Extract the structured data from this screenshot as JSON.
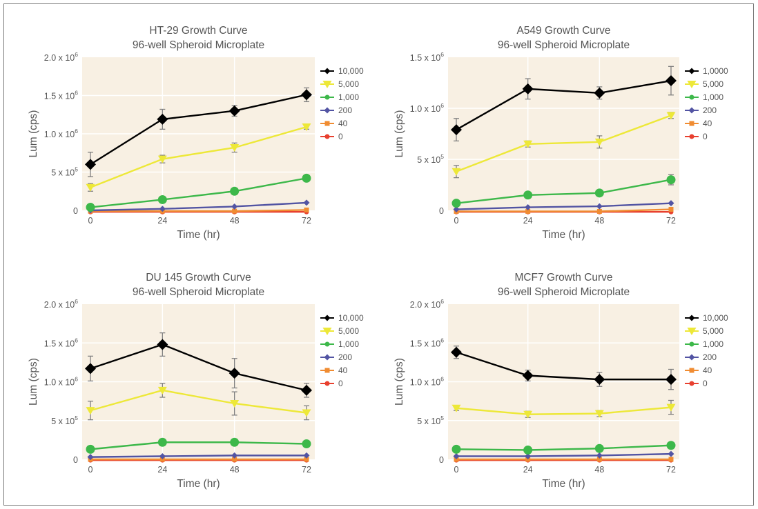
{
  "chart_data": [
    {
      "type": "line",
      "title": "HT-29 Growth Curve",
      "subtitle": "96-well Spheroid Microplate",
      "xlabel": "Time (hr)",
      "ylabel": "Lum (cps)",
      "x": [
        0,
        24,
        48,
        72
      ],
      "xticks": [
        "0",
        "24",
        "48",
        "72"
      ],
      "ylim": [
        0,
        2000000
      ],
      "yticks": [
        {
          "value": 0,
          "mant": "0",
          "exp": ""
        },
        {
          "value": 500000,
          "mant": "5 x 10",
          "exp": "5"
        },
        {
          "value": 1000000,
          "mant": "1.0 x 10",
          "exp": "6"
        },
        {
          "value": 1500000,
          "mant": "1.5 x 10",
          "exp": "6"
        },
        {
          "value": 2000000,
          "mant": "2.0 x 10",
          "exp": "6"
        }
      ],
      "legend_position": "right",
      "series": [
        {
          "name": "10,000",
          "color": "#000000",
          "marker": "diamond",
          "values": [
            600000,
            1190000,
            1300000,
            1510000
          ],
          "errors": [
            160000,
            130000,
            70000,
            90000
          ]
        },
        {
          "name": "5,000",
          "color": "#ede838",
          "marker": "triangle-down",
          "values": [
            300000,
            670000,
            820000,
            1090000
          ],
          "errors": [
            50000,
            50000,
            60000,
            30000
          ]
        },
        {
          "name": "1,000",
          "color": "#3db84a",
          "marker": "circle",
          "values": [
            40000,
            140000,
            250000,
            420000
          ],
          "errors": [
            0,
            0,
            0,
            0
          ]
        },
        {
          "name": "200",
          "color": "#5254a3",
          "marker": "diamond-small",
          "values": [
            0,
            20000,
            50000,
            100000
          ],
          "errors": [
            0,
            0,
            0,
            0
          ]
        },
        {
          "name": "40",
          "color": "#f08c32",
          "marker": "square",
          "values": [
            -10000,
            -10000,
            -10000,
            5000
          ],
          "errors": [
            0,
            0,
            0,
            0
          ]
        },
        {
          "name": "0",
          "color": "#e8402f",
          "marker": "circle-small",
          "values": [
            -20000,
            -20000,
            -20000,
            -20000
          ],
          "errors": [
            0,
            0,
            0,
            0
          ]
        }
      ]
    },
    {
      "type": "line",
      "title": "A549 Growth Curve",
      "subtitle": "96-well Spheroid Microplate",
      "xlabel": "Time (hr)",
      "ylabel": "Lum (cps)",
      "x": [
        0,
        24,
        48,
        72
      ],
      "xticks": [
        "0",
        "24",
        "48",
        "72"
      ],
      "ylim": [
        0,
        1500000
      ],
      "yticks": [
        {
          "value": 0,
          "mant": "0",
          "exp": ""
        },
        {
          "value": 500000,
          "mant": "5 x 10",
          "exp": "5"
        },
        {
          "value": 1000000,
          "mant": "1.0 x 10",
          "exp": "6"
        },
        {
          "value": 1500000,
          "mant": "1.5 x 10",
          "exp": "6"
        }
      ],
      "legend_position": "right",
      "series": [
        {
          "name": "1,0000",
          "color": "#000000",
          "marker": "diamond",
          "values": [
            790000,
            1190000,
            1150000,
            1270000
          ],
          "errors": [
            110000,
            100000,
            60000,
            140000
          ]
        },
        {
          "name": "5,000",
          "color": "#ede838",
          "marker": "triangle-down",
          "values": [
            380000,
            650000,
            670000,
            930000
          ],
          "errors": [
            60000,
            30000,
            60000,
            30000
          ]
        },
        {
          "name": "1,000",
          "color": "#3db84a",
          "marker": "circle",
          "values": [
            70000,
            150000,
            170000,
            300000
          ],
          "errors": [
            0,
            0,
            0,
            50000
          ]
        },
        {
          "name": "200",
          "color": "#5254a3",
          "marker": "diamond-small",
          "values": [
            10000,
            30000,
            40000,
            70000
          ],
          "errors": [
            0,
            0,
            0,
            0
          ]
        },
        {
          "name": "40",
          "color": "#f08c32",
          "marker": "square",
          "values": [
            -10000,
            -10000,
            -10000,
            10000
          ],
          "errors": [
            0,
            0,
            0,
            0
          ]
        },
        {
          "name": "0",
          "color": "#e8402f",
          "marker": "circle-small",
          "values": [
            -15000,
            -15000,
            -15000,
            -15000
          ],
          "errors": [
            0,
            0,
            0,
            0
          ]
        }
      ]
    },
    {
      "type": "line",
      "title": "DU 145 Growth Curve",
      "subtitle": "96-well Spheroid Microplate",
      "xlabel": "Time (hr)",
      "ylabel": "Lum (cps)",
      "x": [
        0,
        24,
        48,
        72
      ],
      "xticks": [
        "0",
        "24",
        "48",
        "72"
      ],
      "ylim": [
        0,
        2000000
      ],
      "yticks": [
        {
          "value": 0,
          "mant": "0",
          "exp": ""
        },
        {
          "value": 500000,
          "mant": "5 x 10",
          "exp": "5"
        },
        {
          "value": 1000000,
          "mant": "1.0 x 10",
          "exp": "6"
        },
        {
          "value": 1500000,
          "mant": "1.5 x 10",
          "exp": "6"
        },
        {
          "value": 2000000,
          "mant": "2.0 x 10",
          "exp": "6"
        }
      ],
      "legend_position": "right",
      "series": [
        {
          "name": "10,000",
          "color": "#000000",
          "marker": "diamond",
          "values": [
            1170000,
            1480000,
            1110000,
            890000
          ],
          "errors": [
            160000,
            150000,
            190000,
            90000
          ]
        },
        {
          "name": "5,000",
          "color": "#ede838",
          "marker": "triangle-down",
          "values": [
            630000,
            890000,
            720000,
            600000
          ],
          "errors": [
            120000,
            90000,
            150000,
            90000
          ]
        },
        {
          "name": "1,000",
          "color": "#3db84a",
          "marker": "circle",
          "values": [
            130000,
            220000,
            220000,
            200000
          ],
          "errors": [
            0,
            0,
            0,
            40000
          ]
        },
        {
          "name": "200",
          "color": "#5254a3",
          "marker": "diamond-small",
          "values": [
            30000,
            40000,
            50000,
            50000
          ],
          "errors": [
            0,
            0,
            0,
            0
          ]
        },
        {
          "name": "40",
          "color": "#f08c32",
          "marker": "square",
          "values": [
            0,
            0,
            0,
            0
          ],
          "errors": [
            0,
            0,
            0,
            0
          ]
        },
        {
          "name": "0",
          "color": "#e8402f",
          "marker": "circle-small",
          "values": [
            -10000,
            -10000,
            -10000,
            -10000
          ],
          "errors": [
            0,
            0,
            0,
            0
          ]
        }
      ]
    },
    {
      "type": "line",
      "title": "MCF7 Growth Curve",
      "subtitle": "96-well Spheroid Microplate",
      "xlabel": "Time (hr)",
      "ylabel": "Lum (cps)",
      "x": [
        0,
        24,
        48,
        72
      ],
      "xticks": [
        "0",
        "24",
        "48",
        "72"
      ],
      "ylim": [
        0,
        2000000
      ],
      "yticks": [
        {
          "value": 0,
          "mant": "0",
          "exp": ""
        },
        {
          "value": 500000,
          "mant": "5 x 10",
          "exp": "5"
        },
        {
          "value": 1000000,
          "mant": "1.0 x 10",
          "exp": "6"
        },
        {
          "value": 1500000,
          "mant": "1.5 x 10",
          "exp": "6"
        },
        {
          "value": 2000000,
          "mant": "2.0 x 10",
          "exp": "6"
        }
      ],
      "legend_position": "right",
      "series": [
        {
          "name": "10,000",
          "color": "#000000",
          "marker": "diamond",
          "values": [
            1380000,
            1080000,
            1030000,
            1030000
          ],
          "errors": [
            80000,
            70000,
            90000,
            130000
          ]
        },
        {
          "name": "5,000",
          "color": "#ede838",
          "marker": "triangle-down",
          "values": [
            660000,
            580000,
            590000,
            670000
          ],
          "errors": [
            30000,
            40000,
            40000,
            90000
          ]
        },
        {
          "name": "1,000",
          "color": "#3db84a",
          "marker": "circle",
          "values": [
            130000,
            120000,
            140000,
            180000
          ],
          "errors": [
            0,
            0,
            0,
            0
          ]
        },
        {
          "name": "200",
          "color": "#5254a3",
          "marker": "diamond-small",
          "values": [
            40000,
            40000,
            50000,
            70000
          ],
          "errors": [
            0,
            0,
            0,
            0
          ]
        },
        {
          "name": "40",
          "color": "#f08c32",
          "marker": "square",
          "values": [
            0,
            0,
            0,
            0
          ],
          "errors": [
            0,
            0,
            0,
            0
          ]
        },
        {
          "name": "0",
          "color": "#e8402f",
          "marker": "circle-small",
          "values": [
            -10000,
            -10000,
            -10000,
            -10000
          ],
          "errors": [
            0,
            0,
            0,
            0
          ]
        }
      ]
    }
  ],
  "style": {
    "plot_background": "#f8f0e3",
    "grid_color": "#ffffff",
    "text_color": "#555555",
    "error_bar_color": "#7f7f7f",
    "frame_color": "#7a7a7a"
  }
}
